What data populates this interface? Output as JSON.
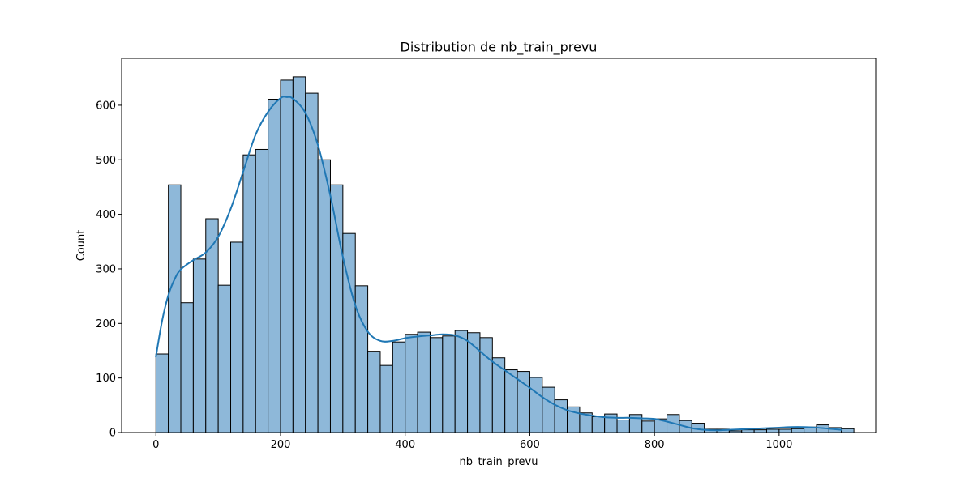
{
  "chart_data": {
    "type": "bar",
    "title": "Distribution de nb_train_prevu",
    "xlabel": "nb_train_prevu",
    "ylabel": "Count",
    "xlim": [
      -55,
      1155
    ],
    "ylim": [
      0,
      686
    ],
    "grid": false,
    "bin_start": 0,
    "bin_width": 20,
    "counts": [
      144,
      454,
      238,
      318,
      392,
      270,
      349,
      509,
      519,
      611,
      646,
      652,
      622,
      500,
      454,
      365,
      269,
      149,
      123,
      166,
      180,
      184,
      174,
      177,
      187,
      183,
      174,
      137,
      115,
      112,
      101,
      83,
      60,
      47,
      36,
      29,
      34,
      23,
      33,
      21,
      25,
      33,
      22,
      17,
      6,
      6,
      3,
      5,
      5,
      6,
      6,
      7,
      10,
      14,
      9,
      7
    ],
    "kde": {
      "x": [
        0,
        10,
        20,
        30,
        40,
        60,
        80,
        100,
        120,
        140,
        160,
        180,
        200,
        210,
        220,
        240,
        260,
        280,
        300,
        320,
        340,
        360,
        380,
        400,
        420,
        440,
        460,
        480,
        500,
        520,
        540,
        560,
        580,
        600,
        620,
        640,
        660,
        680,
        700,
        720,
        740,
        760,
        780,
        800,
        820,
        840,
        860,
        880,
        900,
        920,
        940,
        960,
        980,
        1000,
        1020,
        1040,
        1060,
        1080,
        1100
      ],
      "y": [
        139,
        205,
        252,
        281,
        299,
        316,
        330,
        359,
        410,
        478,
        546,
        588,
        613,
        615,
        612,
        586,
        527,
        434,
        322,
        233,
        185,
        168,
        168,
        173,
        176,
        178,
        180,
        178,
        168,
        149,
        130,
        114,
        98,
        82,
        65,
        51,
        41,
        35,
        31,
        28,
        27,
        27,
        26,
        25,
        20,
        14,
        8,
        5,
        4,
        5,
        6,
        7,
        8,
        9,
        10,
        10,
        9,
        7,
        5
      ]
    },
    "x_ticks": [
      0,
      200,
      400,
      600,
      800,
      1000
    ],
    "y_ticks": [
      0,
      100,
      200,
      300,
      400,
      500,
      600
    ],
    "colors": {
      "bar_fill": "#8eb8d9",
      "bar_edge": "#000000",
      "kde_line": "#1f77b4"
    }
  }
}
